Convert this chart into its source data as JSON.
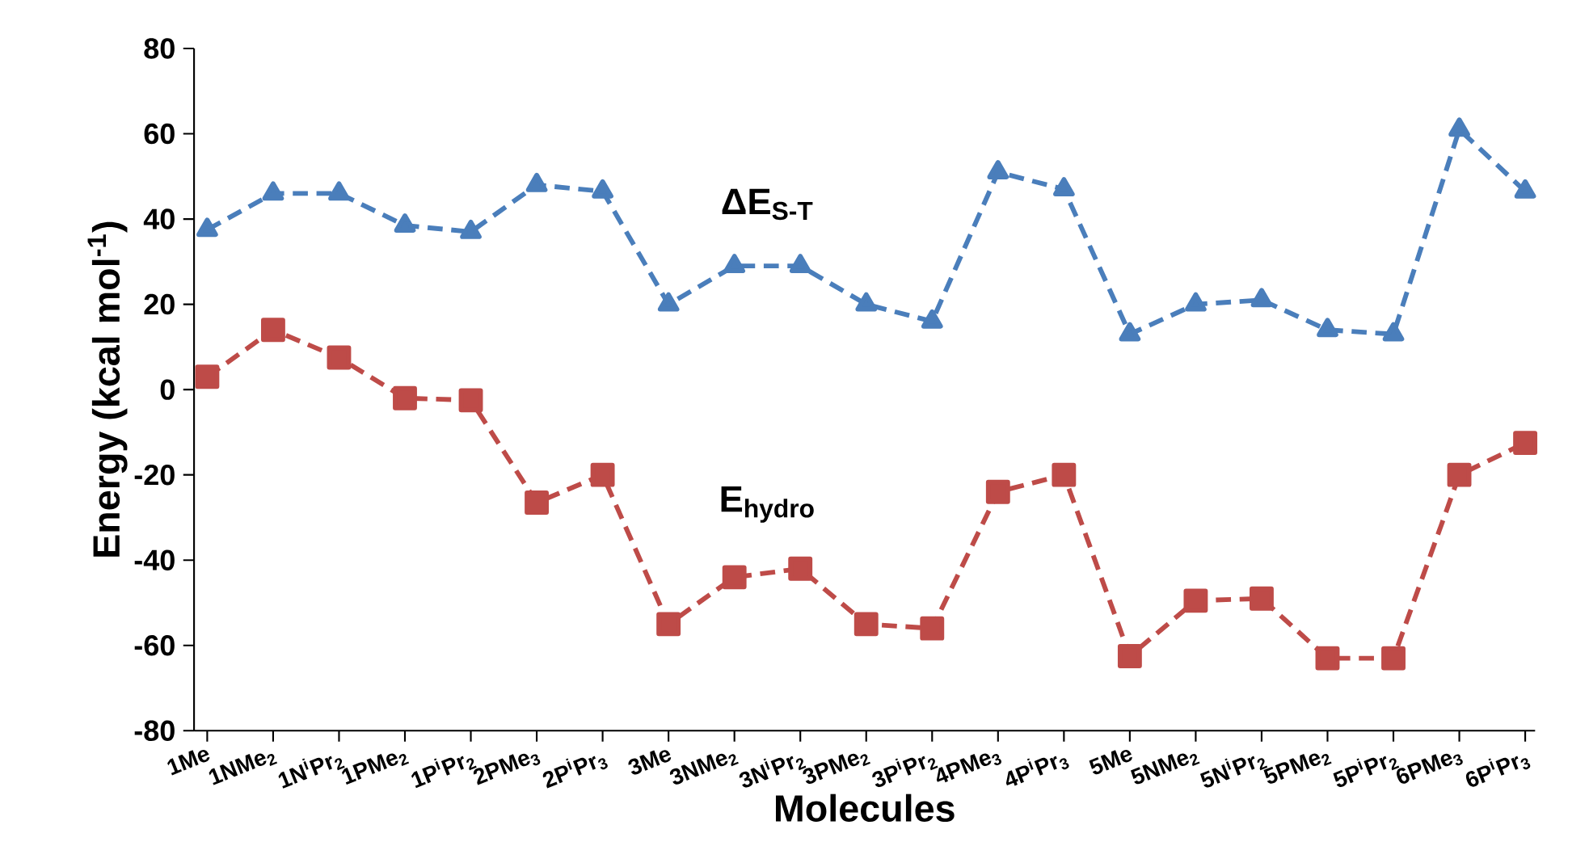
{
  "chart_data": {
    "type": "line",
    "xlabel": "Molecules",
    "ylabel": "Energy (kcal mol$^{-1}$)",
    "categories": [
      "1Me",
      "1NMe$_{2}$",
      "1N$^{i}$Pr$_{2}$",
      "1PMe$_{2}$",
      "1P$^{i}$Pr$_{2}$",
      "2PMe$_{3}$",
      "2P$^{i}$Pr$_{3}$",
      "3Me",
      "3NMe$_{2}$",
      "3N$^{i}$Pr$_{2}$",
      "3PMe$_{2}$",
      "3P$^{i}$Pr$_{2}$",
      "4PMe$_{3}$",
      "4P$^{i}$Pr$_{3}$",
      "5Me",
      "5NMe$_{2}$",
      "5N$^{i}$Pr$_{2}$",
      "5PMe$_{2}$",
      "5P$^{i}$Pr$_{2}$",
      "6PMe$_{3}$",
      "6P$^{i}$Pr$_{3}$"
    ],
    "series": [
      {
        "name": "ΔE$_{S-T}$",
        "color": "#4a7ebb",
        "marker": "triangle",
        "values": [
          37.5,
          46,
          46,
          38.5,
          37,
          48,
          46.5,
          20,
          29,
          29,
          20,
          16,
          51,
          47,
          13,
          20,
          21,
          14,
          13,
          61,
          46.5
        ]
      },
      {
        "name": "E$_{hydro}$",
        "color": "#be4b48",
        "marker": "square",
        "values": [
          3,
          14,
          7.5,
          -2,
          -2.5,
          -26.5,
          -20,
          -55,
          -44,
          -42,
          -55,
          -56,
          -24,
          -20,
          -62.5,
          -49.5,
          -49,
          -63,
          -63,
          -20,
          -12.5
        ]
      }
    ],
    "ylim": [
      -80,
      80
    ],
    "yticks": [
      -80,
      -60,
      -40,
      -20,
      0,
      20,
      40,
      60,
      80
    ],
    "grid": false,
    "line_style": "dashed"
  }
}
